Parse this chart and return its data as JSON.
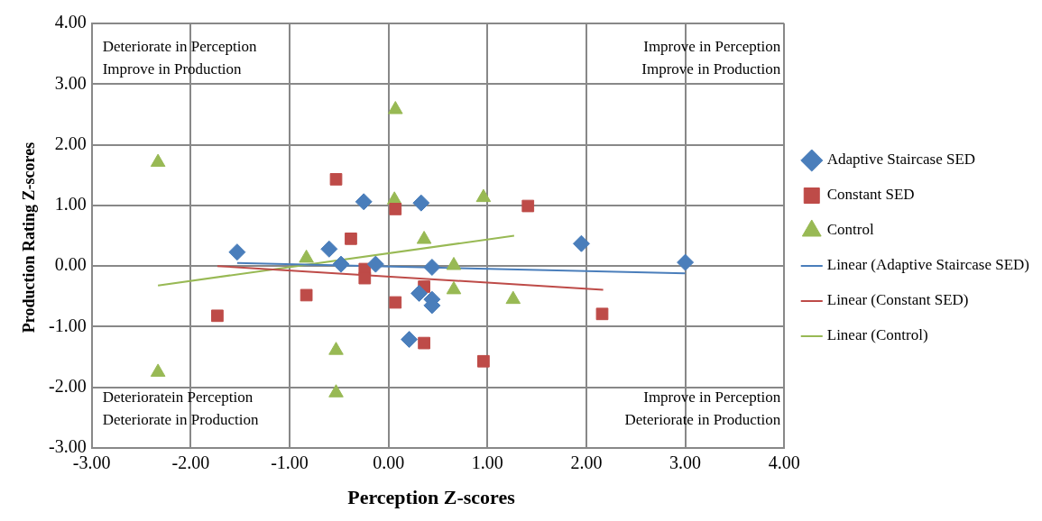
{
  "chart_data": {
    "type": "scatter",
    "xlabel": "Perception Z-scores",
    "ylabel": "Production Rating Z-scores",
    "xlim": [
      -3,
      4
    ],
    "ylim": [
      -3,
      4
    ],
    "xticks": [
      {
        "value": -3,
        "label": "-3.00"
      },
      {
        "value": -2,
        "label": "-2.00"
      },
      {
        "value": -1,
        "label": "-1.00"
      },
      {
        "value": 0,
        "label": "0.00"
      },
      {
        "value": 1,
        "label": "1.00"
      },
      {
        "value": 2,
        "label": "2.00"
      },
      {
        "value": 3,
        "label": "3.00"
      },
      {
        "value": 4,
        "label": "4.00"
      }
    ],
    "yticks": [
      {
        "value": -3,
        "label": "-3.00"
      },
      {
        "value": -2,
        "label": "-2.00"
      },
      {
        "value": -1,
        "label": "-1.00"
      },
      {
        "value": 0,
        "label": "0.00"
      },
      {
        "value": 1,
        "label": "1.00"
      },
      {
        "value": 2,
        "label": "2.00"
      },
      {
        "value": 3,
        "label": "3.00"
      },
      {
        "value": 4,
        "label": "4.00"
      }
    ],
    "grid": true,
    "legend": "right",
    "annotations": [
      "Deteriorate in Perception\nImprove in Production",
      "Improve in Perception\nImprove in Production",
      "Deterioratein Perception\nDeteriorate in Production",
      "Improve in Perception\nDeteriorate in Production"
    ],
    "series": [
      {
        "name": "Adaptive Staircase SED",
        "type": "scatter",
        "marker": "diamond",
        "color": "#4a7ebb",
        "x": [
          -1.53,
          -0.6,
          -0.25,
          -0.48,
          -0.13,
          0.33,
          0.44,
          0.31,
          0.44,
          0.44,
          0.21,
          1.95,
          3.0
        ],
        "values": [
          0.23,
          0.28,
          1.06,
          0.03,
          0.03,
          1.04,
          -0.02,
          -0.45,
          -0.55,
          -0.65,
          -1.21,
          0.37,
          0.06
        ]
      },
      {
        "name": "Constant SED",
        "type": "scatter",
        "marker": "square",
        "color": "#be4b48",
        "x": [
          -0.53,
          0.07,
          -0.38,
          -0.24,
          -0.24,
          -0.83,
          -1.73,
          0.07,
          0.36,
          0.36,
          1.41,
          0.96,
          2.16
        ],
        "values": [
          1.43,
          0.94,
          0.45,
          -0.05,
          -0.2,
          -0.48,
          -0.82,
          -0.6,
          -0.34,
          -1.27,
          0.99,
          -1.57,
          -0.79
        ]
      },
      {
        "name": "Control",
        "type": "scatter",
        "marker": "triangle",
        "color": "#98b954",
        "x": [
          -2.33,
          -2.33,
          -0.83,
          -0.53,
          -0.53,
          0.06,
          0.07,
          0.36,
          0.96,
          0.66,
          0.66,
          1.26
        ],
        "values": [
          1.71,
          -1.75,
          0.13,
          -1.39,
          -2.09,
          1.09,
          2.58,
          0.44,
          1.13,
          0.01,
          -0.39,
          -0.55
        ]
      },
      {
        "name": "Linear (Adaptive Staircase SED)",
        "type": "line",
        "marker": "none",
        "color": "#4a7ebb",
        "x": [
          -1.53,
          3.0
        ],
        "values": [
          0.05,
          -0.12
        ]
      },
      {
        "name": "Linear (Constant SED)",
        "type": "line",
        "marker": "none",
        "color": "#be4b48",
        "x": [
          -1.73,
          2.17
        ],
        "values": [
          0.0,
          -0.39
        ]
      },
      {
        "name": "Linear (Control)",
        "type": "line",
        "marker": "none",
        "color": "#98b954",
        "x": [
          -2.33,
          1.27
        ],
        "values": [
          -0.32,
          0.5
        ]
      }
    ]
  }
}
